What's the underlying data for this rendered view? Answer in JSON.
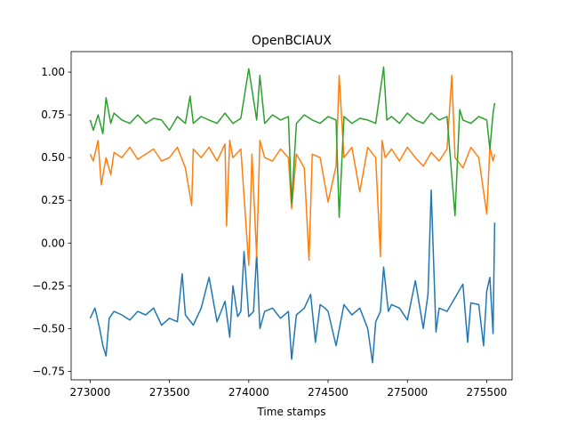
{
  "chart_data": {
    "type": "line",
    "title": "OpenBCIAUX",
    "xlabel": "Time stamps",
    "ylabel": "",
    "xlim": [
      272880,
      275660
    ],
    "ylim": [
      -0.8,
      1.12
    ],
    "xticks": [
      273000,
      273500,
      274000,
      274500,
      275000,
      275500
    ],
    "xtick_labels": [
      "273000",
      "273500",
      "274000",
      "274500",
      "275000",
      "275500"
    ],
    "yticks": [
      -0.75,
      -0.5,
      -0.25,
      0.0,
      0.25,
      0.5,
      0.75,
      1.0
    ],
    "ytick_labels": [
      "−0.75",
      "−0.50",
      "−0.25",
      "0.00",
      "0.25",
      "0.50",
      "0.75",
      "1.00"
    ],
    "grid": false,
    "legend": "none",
    "series": [
      {
        "color": "#1f77b4",
        "x": [
          273000,
          273030,
          273060,
          273080,
          273100,
          273120,
          273150,
          273200,
          273250,
          273300,
          273350,
          273400,
          273450,
          273500,
          273550,
          273580,
          273600,
          273650,
          273700,
          273750,
          273800,
          273850,
          273880,
          273900,
          273930,
          273950,
          273970,
          274000,
          274030,
          274050,
          274070,
          274100,
          274150,
          274200,
          274250,
          274270,
          274300,
          274350,
          274390,
          274420,
          274450,
          274480,
          274500,
          274550,
          274600,
          274650,
          274700,
          274750,
          274780,
          274800,
          274830,
          274850,
          274880,
          274900,
          274950,
          275000,
          275050,
          275100,
          275130,
          275150,
          275180,
          275200,
          275250,
          275300,
          275350,
          275380,
          275400,
          275450,
          275480,
          275500,
          275520,
          275540,
          275550
        ],
        "y": [
          -0.44,
          -0.38,
          -0.5,
          -0.6,
          -0.66,
          -0.44,
          -0.4,
          -0.42,
          -0.45,
          -0.4,
          -0.42,
          -0.38,
          -0.48,
          -0.44,
          -0.46,
          -0.18,
          -0.42,
          -0.48,
          -0.38,
          -0.2,
          -0.46,
          -0.34,
          -0.55,
          -0.25,
          -0.43,
          -0.4,
          -0.05,
          -0.43,
          -0.4,
          -0.06,
          -0.5,
          -0.4,
          -0.38,
          -0.44,
          -0.4,
          -0.68,
          -0.42,
          -0.38,
          -0.3,
          -0.58,
          -0.36,
          -0.38,
          -0.4,
          -0.6,
          -0.36,
          -0.42,
          -0.38,
          -0.5,
          -0.7,
          -0.46,
          -0.4,
          -0.14,
          -0.4,
          -0.36,
          -0.38,
          -0.45,
          -0.22,
          -0.5,
          -0.3,
          0.31,
          -0.52,
          -0.38,
          -0.4,
          -0.32,
          -0.24,
          -0.58,
          -0.35,
          -0.36,
          -0.6,
          -0.28,
          -0.2,
          -0.53,
          0.12
        ]
      },
      {
        "color": "#ff7f0e",
        "x": [
          273000,
          273020,
          273050,
          273070,
          273100,
          273130,
          273150,
          273200,
          273250,
          273300,
          273350,
          273400,
          273450,
          273500,
          273550,
          273600,
          273640,
          273650,
          273700,
          273750,
          273800,
          273850,
          273860,
          273880,
          273900,
          273950,
          274000,
          274020,
          274050,
          274070,
          274100,
          274150,
          274200,
          274250,
          274270,
          274300,
          274350,
          274380,
          274400,
          274450,
          274500,
          274550,
          274570,
          274600,
          274650,
          274700,
          274750,
          274800,
          274830,
          274840,
          274860,
          274900,
          274950,
          275000,
          275050,
          275100,
          275150,
          275200,
          275250,
          275280,
          275300,
          275350,
          275400,
          275450,
          275500,
          275520,
          275540,
          275550
        ],
        "y": [
          0.52,
          0.48,
          0.6,
          0.34,
          0.5,
          0.4,
          0.53,
          0.5,
          0.56,
          0.49,
          0.52,
          0.55,
          0.48,
          0.5,
          0.56,
          0.44,
          0.22,
          0.55,
          0.5,
          0.56,
          0.48,
          0.58,
          0.1,
          0.6,
          0.5,
          0.55,
          -0.13,
          0.52,
          -0.08,
          0.6,
          0.5,
          0.48,
          0.55,
          0.5,
          0.2,
          0.52,
          0.44,
          -0.1,
          0.52,
          0.5,
          0.24,
          0.45,
          0.98,
          0.5,
          0.56,
          0.3,
          0.56,
          0.5,
          -0.08,
          0.6,
          0.5,
          0.55,
          0.48,
          0.56,
          0.5,
          0.45,
          0.53,
          0.48,
          0.55,
          0.98,
          0.5,
          0.44,
          0.56,
          0.5,
          0.17,
          0.56,
          0.48,
          0.52
        ]
      },
      {
        "color": "#2ca02c",
        "x": [
          273000,
          273020,
          273050,
          273080,
          273100,
          273130,
          273150,
          273200,
          273250,
          273300,
          273350,
          273400,
          273450,
          273500,
          273550,
          273600,
          273630,
          273650,
          273700,
          273750,
          273800,
          273850,
          273900,
          273950,
          274000,
          274050,
          274070,
          274100,
          274150,
          274200,
          274250,
          274270,
          274300,
          274350,
          274400,
          274450,
          274500,
          274550,
          274570,
          274600,
          274650,
          274700,
          274750,
          274800,
          274850,
          274870,
          274900,
          274950,
          275000,
          275050,
          275100,
          275150,
          275200,
          275250,
          275300,
          275330,
          275350,
          275400,
          275450,
          275500,
          275520,
          275540,
          275550
        ],
        "y": [
          0.72,
          0.66,
          0.75,
          0.64,
          0.85,
          0.7,
          0.76,
          0.72,
          0.7,
          0.75,
          0.7,
          0.73,
          0.72,
          0.66,
          0.74,
          0.7,
          0.86,
          0.7,
          0.74,
          0.72,
          0.7,
          0.76,
          0.7,
          0.73,
          1.02,
          0.72,
          0.98,
          0.7,
          0.75,
          0.72,
          0.74,
          0.23,
          0.7,
          0.75,
          0.72,
          0.7,
          0.74,
          0.72,
          0.15,
          0.74,
          0.7,
          0.73,
          0.72,
          0.7,
          1.03,
          0.72,
          0.74,
          0.7,
          0.76,
          0.72,
          0.7,
          0.76,
          0.72,
          0.74,
          0.16,
          0.78,
          0.72,
          0.7,
          0.74,
          0.72,
          0.55,
          0.76,
          0.82
        ]
      }
    ]
  }
}
